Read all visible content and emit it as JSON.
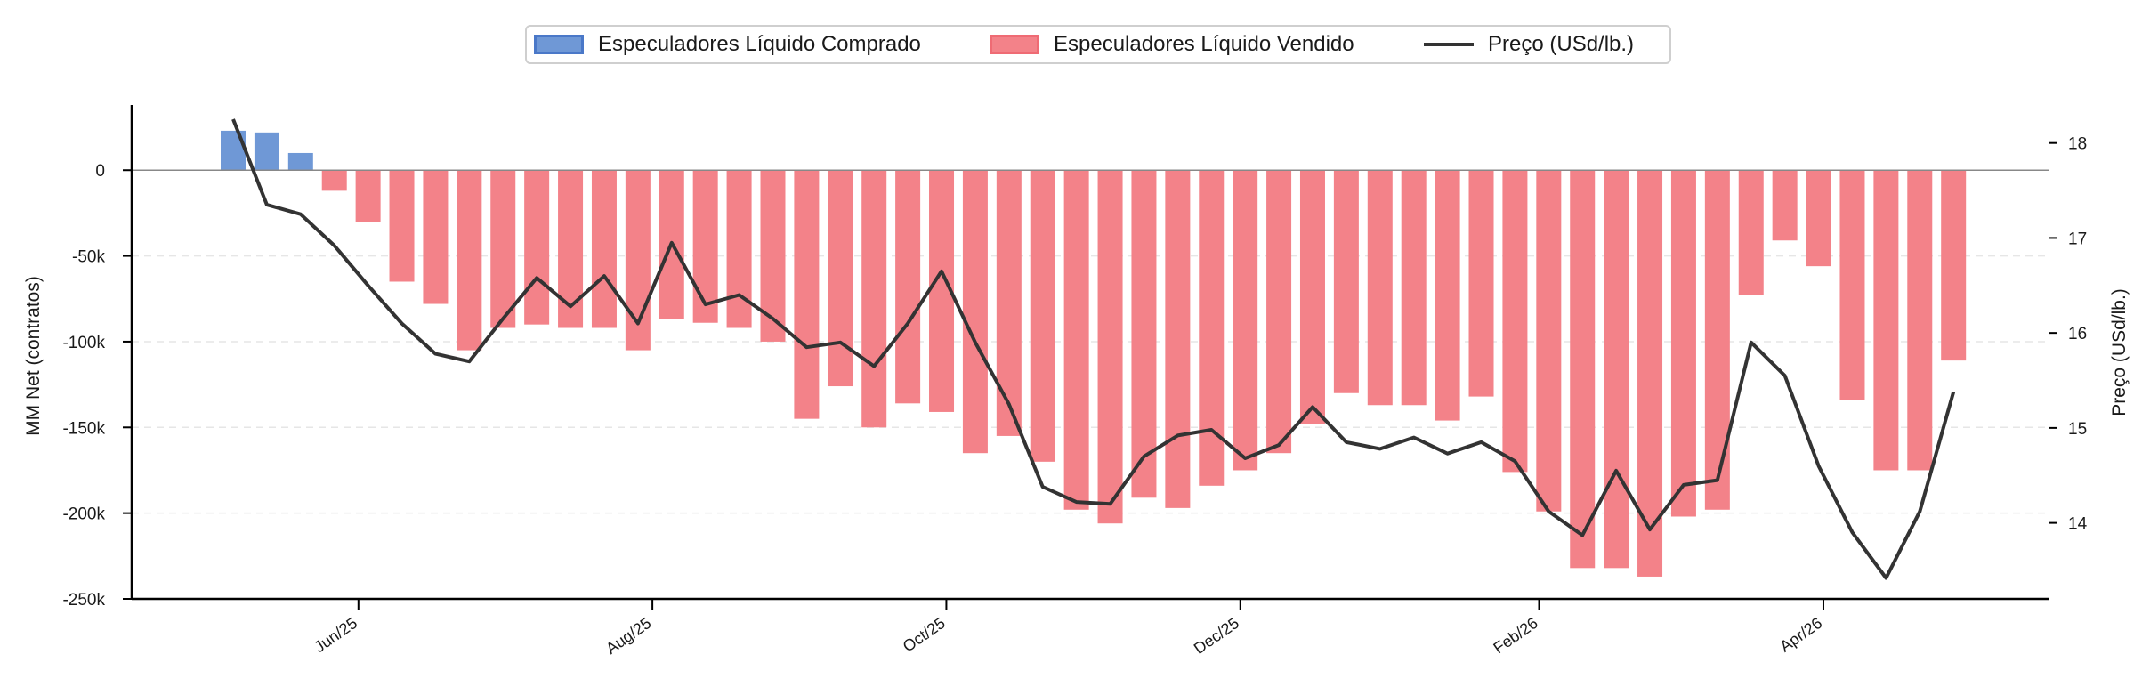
{
  "chart_data": {
    "type": "bar+line",
    "title": "",
    "xlabel": "",
    "ylabel": "MM Net (contratos)",
    "y2label": "Preço (USd/lb.)",
    "ylim": [
      -250000,
      38000
    ],
    "y2lim": [
      13.2,
      18.4
    ],
    "yticks": [
      0,
      -50000,
      -100000,
      -150000,
      -200000,
      -250000
    ],
    "ytick_labels": [
      "0",
      "-50k",
      "-100k",
      "-150k",
      "-200k",
      "-250k"
    ],
    "y2ticks": [
      14,
      15,
      16,
      17,
      18
    ],
    "y2tick_labels": [
      "14",
      "15",
      "16",
      "17",
      "18"
    ],
    "xticks": [
      "2025-06-01",
      "2025-08-01",
      "2025-10-01",
      "2025-12-01",
      "2026-02-01",
      "2026-04-01"
    ],
    "xtick_labels": [
      "Jun/25",
      "Aug/25",
      "Oct/25",
      "Dec/25",
      "Feb/26",
      "Apr/26"
    ],
    "grid": "horizontal-dashed",
    "legend_position": "top-center",
    "colors": {
      "buy": "#6f98d6",
      "sell": "#f38289",
      "price": "#333333"
    },
    "x": [
      "2025-05-06",
      "2025-05-13",
      "2025-05-20",
      "2025-05-27",
      "2025-06-03",
      "2025-06-10",
      "2025-06-17",
      "2025-06-24",
      "2025-07-01",
      "2025-07-08",
      "2025-07-15",
      "2025-07-22",
      "2025-07-29",
      "2025-08-05",
      "2025-08-12",
      "2025-08-19",
      "2025-08-26",
      "2025-09-02",
      "2025-09-09",
      "2025-09-16",
      "2025-09-23",
      "2025-09-30",
      "2025-10-07",
      "2025-10-14",
      "2025-10-21",
      "2025-10-28",
      "2025-11-04",
      "2025-11-11",
      "2025-11-18",
      "2025-11-25",
      "2025-12-02",
      "2025-12-09",
      "2025-12-16",
      "2025-12-23",
      "2025-12-30",
      "2026-01-06",
      "2026-01-13",
      "2026-01-20",
      "2026-01-27",
      "2026-02-03",
      "2026-02-10",
      "2026-02-17",
      "2026-02-24",
      "2026-03-03",
      "2026-03-10",
      "2026-03-17",
      "2026-03-24",
      "2026-03-31",
      "2026-04-07",
      "2026-04-14",
      "2026-04-21",
      "2026-04-28",
      "2026-05-05",
      "2026-05-12"
    ],
    "series": [
      {
        "name": "Especuladores Líquido Comprado",
        "kind": "bar",
        "values": [
          23000,
          22000,
          10000,
          null,
          null,
          null,
          null,
          null,
          null,
          null,
          null,
          null,
          null,
          null,
          null,
          null,
          null,
          null,
          null,
          null,
          null,
          null,
          null,
          null,
          null,
          null,
          null,
          null,
          null,
          null,
          null,
          null,
          null,
          null,
          null,
          null,
          null,
          null,
          null,
          null,
          null,
          null,
          null,
          null,
          null,
          null,
          null,
          null,
          null,
          null,
          null,
          null,
          null,
          null
        ]
      },
      {
        "name": "Especuladores Líquido Vendido",
        "kind": "bar",
        "values": [
          null,
          null,
          null,
          -12000,
          -30000,
          -65000,
          -78000,
          -105000,
          -92000,
          -90000,
          -92000,
          -92000,
          -105000,
          -87000,
          -89000,
          -92000,
          -100000,
          -145000,
          -126000,
          -150000,
          -136000,
          -141000,
          -165000,
          -155000,
          -170000,
          -198000,
          -206000,
          -191000,
          -197000,
          -184000,
          -175000,
          -165000,
          -148000,
          -130000,
          -137000,
          -137000,
          -146000,
          -132000,
          -176000,
          -199000,
          -232000,
          -232000,
          -237000,
          -202000,
          -198000,
          -73000,
          -41000,
          -56000,
          -134000,
          -175000,
          -175000,
          -111000,
          null,
          null
        ]
      },
      {
        "name": "Preço (USd/lb.)",
        "kind": "line",
        "axis": "y2",
        "values": [
          18.25,
          17.35,
          17.25,
          16.92,
          16.5,
          16.1,
          15.78,
          15.7,
          16.15,
          16.58,
          16.28,
          16.6,
          16.1,
          16.95,
          16.3,
          16.4,
          16.15,
          15.85,
          15.9,
          15.65,
          16.1,
          16.65,
          15.9,
          15.25,
          14.38,
          14.22,
          14.2,
          14.7,
          14.92,
          14.98,
          14.68,
          14.82,
          15.22,
          14.85,
          14.78,
          14.9,
          14.73,
          14.85,
          14.65,
          14.12,
          13.87,
          14.55,
          13.93,
          14.4,
          14.45,
          15.9,
          15.55,
          14.6,
          13.9,
          13.42,
          14.12,
          15.38,
          null,
          null
        ]
      }
    ]
  },
  "legend": {
    "buy": "Especuladores Líquido Comprado",
    "sell": "Especuladores Líquido Vendido",
    "price": "Preço (USd/lb.)"
  }
}
